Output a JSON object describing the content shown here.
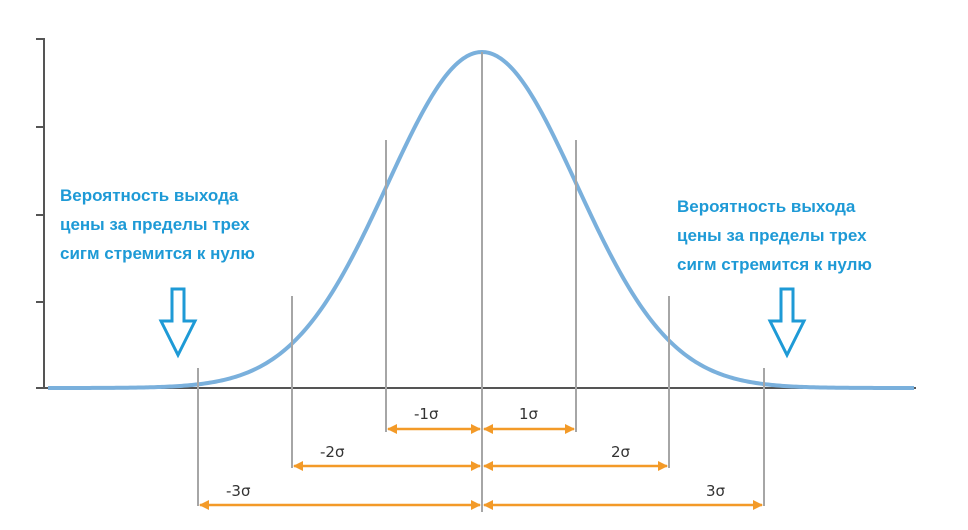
{
  "annotation_left": {
    "lines": [
      "Вероятность выхода",
      "цены за пределы трех",
      "сигм стремится к нулю"
    ]
  },
  "annotation_right": {
    "lines": [
      "Вероятность выхода",
      "цены за пределы трех",
      "сигм стремится к нулю"
    ]
  },
  "sigma_labels": {
    "minus_1": "-1σ",
    "plus_1": "1σ",
    "minus_2": "-2σ",
    "plus_2": "2σ",
    "minus_3": "-3σ",
    "plus_3": "3σ"
  },
  "colors": {
    "curve": "#7ab0dc",
    "axis": "#555555",
    "sigma_lines": "#a6a6a6",
    "arrows": "#f39a28",
    "annotation_text": "#1e9ad6",
    "down_arrows": "#1e9ad6"
  },
  "icons": [
    "down-arrow-icon"
  ]
}
